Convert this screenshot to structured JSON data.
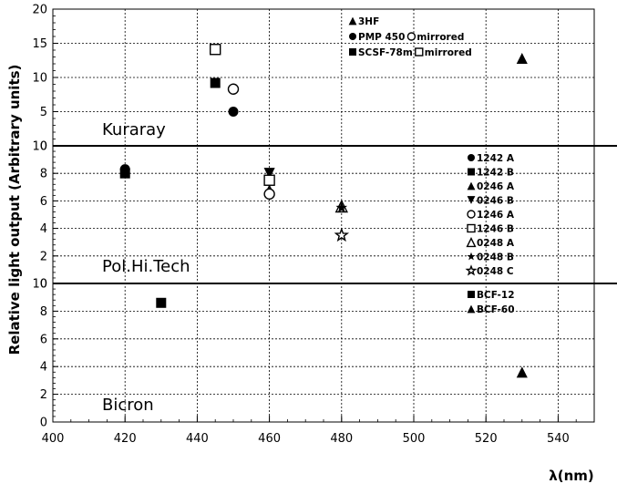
{
  "chart_data": {
    "type": "scatter",
    "title": "",
    "xlabel": "λ(nm)",
    "ylabel": "Relative light output (Arbitrary units)",
    "xlim": [
      400,
      550
    ],
    "x_ticks": [
      400,
      420,
      440,
      460,
      480,
      500,
      520,
      540
    ],
    "grid": true,
    "panels": [
      {
        "label": "Kuraray",
        "ylim": [
          0,
          20
        ],
        "y_ticks": [
          0,
          5,
          10,
          15,
          20
        ],
        "legend_placement": "top-center",
        "series": [
          {
            "name": "3HF",
            "marker": "triangle-filled",
            "points": [
              [
                530,
                12.8
              ]
            ]
          },
          {
            "name": "PMP 450",
            "marker": "circle-filled",
            "points": [
              [
                450,
                5.0
              ]
            ]
          },
          {
            "name": "mirrored",
            "marker": "circle-open",
            "points": [
              [
                450,
                8.3
              ]
            ]
          },
          {
            "name": "SCSF-78m",
            "marker": "square-filled",
            "points": [
              [
                445,
                9.2
              ]
            ]
          },
          {
            "name": "mirrored",
            "marker": "square-open",
            "points": [
              [
                445,
                14.1
              ]
            ]
          }
        ],
        "legend_rows": [
          [
            {
              "marker": "triangle-filled",
              "text": "3HF"
            }
          ],
          [
            {
              "marker": "circle-filled",
              "text": "PMP 450"
            },
            {
              "marker": "circle-open",
              "text": "mirrored"
            }
          ],
          [
            {
              "marker": "square-filled",
              "text": "SCSF-78m"
            },
            {
              "marker": "square-open",
              "text": "mirrored"
            }
          ]
        ]
      },
      {
        "label": "Pol.Hi.Tech",
        "ylim": [
          0,
          10
        ],
        "y_ticks": [
          0,
          2,
          4,
          6,
          8,
          10
        ],
        "legend_placement": "right",
        "series": [
          {
            "name": "1242 A",
            "marker": "circle-filled",
            "points": [
              [
                420,
                8.3
              ]
            ]
          },
          {
            "name": "1242 B",
            "marker": "square-filled",
            "points": [
              [
                420,
                8.0
              ]
            ]
          },
          {
            "name": "0246 A",
            "marker": "triangle-filled",
            "points": [
              [
                460,
                6.8
              ]
            ]
          },
          {
            "name": "0246 B",
            "marker": "triangle-down-filled",
            "points": [
              [
                460,
                8.0
              ]
            ]
          },
          {
            "name": "1246 A",
            "marker": "circle-open",
            "points": [
              [
                460,
                6.5
              ]
            ]
          },
          {
            "name": "1246 B",
            "marker": "square-open",
            "points": [
              [
                460,
                7.5
              ]
            ]
          },
          {
            "name": "0248 A",
            "marker": "triangle-open",
            "points": [
              [
                480,
                5.6
              ]
            ]
          },
          {
            "name": "0248 B",
            "marker": "star-filled",
            "points": [
              [
                480,
                5.5
              ]
            ]
          },
          {
            "name": "0248 C",
            "marker": "star-open",
            "points": [
              [
                480,
                3.5
              ]
            ]
          }
        ],
        "legend_rows": [
          [
            {
              "marker": "circle-filled",
              "text": "1242 A"
            }
          ],
          [
            {
              "marker": "square-filled",
              "text": "1242 B"
            }
          ],
          [
            {
              "marker": "triangle-filled",
              "text": "0246 A"
            }
          ],
          [
            {
              "marker": "triangle-down-filled",
              "text": "0246 B"
            }
          ],
          [
            {
              "marker": "circle-open",
              "text": "1246 A"
            }
          ],
          [
            {
              "marker": "square-open",
              "text": "1246 B"
            }
          ],
          [
            {
              "marker": "triangle-open",
              "text": "0248 A"
            }
          ],
          [
            {
              "marker": "star-filled",
              "text": "0248 B"
            }
          ],
          [
            {
              "marker": "star-open",
              "text": "0248 C"
            }
          ]
        ]
      },
      {
        "label": "Bicron",
        "ylim": [
          0,
          10
        ],
        "y_ticks": [
          0,
          2,
          4,
          6,
          8,
          10
        ],
        "legend_placement": "right",
        "series": [
          {
            "name": "BCF-12",
            "marker": "square-filled",
            "points": [
              [
                430,
                8.6
              ]
            ]
          },
          {
            "name": "BCF-60",
            "marker": "triangle-filled",
            "points": [
              [
                530,
                3.6
              ]
            ]
          }
        ],
        "legend_rows": [
          [
            {
              "marker": "square-filled",
              "text": "BCF-12"
            }
          ],
          [
            {
              "marker": "triangle-filled",
              "text": "BCF-60"
            }
          ]
        ]
      }
    ]
  }
}
